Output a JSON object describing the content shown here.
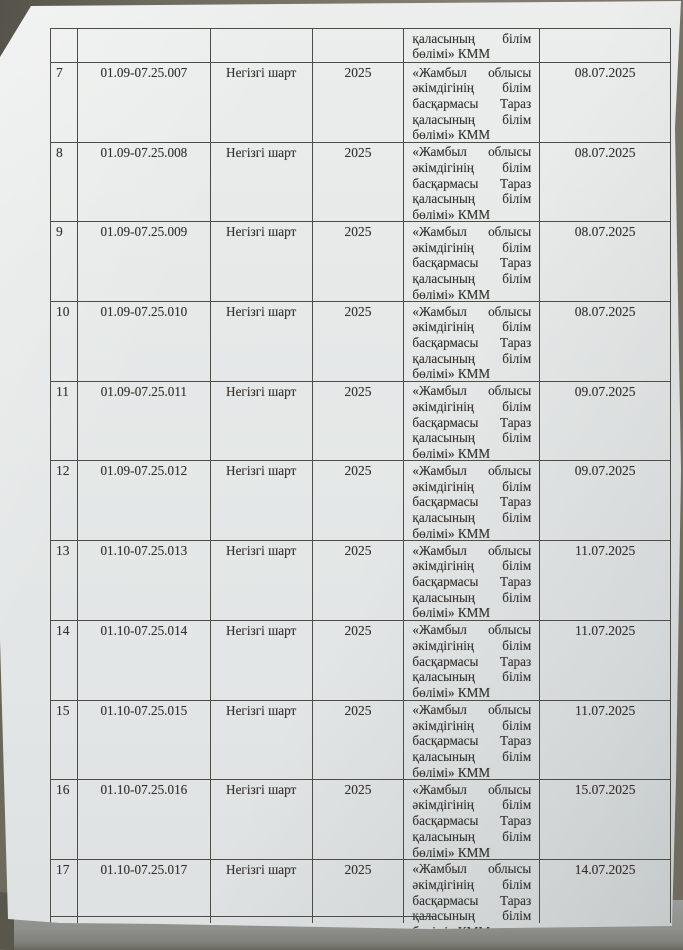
{
  "document": {
    "kind": "photographed paper page, continuation of a contracts register table",
    "language": "Kazakh"
  },
  "table": {
    "organization_full": "«Жамбыл облысы әкімдігінің білім басқармасы Тараз қаласының білім бөлімі» КММ",
    "organization_lines": [
      [
        "«Жамбыл",
        "облысы"
      ],
      [
        "әкімдігінің",
        "білім"
      ],
      [
        "басқармасы",
        "Тараз"
      ],
      [
        "қаласының",
        "білім"
      ],
      [
        "бөлімі» КММ"
      ]
    ],
    "top_partial_row": {
      "organization_lines": [
        [
          "қаласының",
          "білім"
        ],
        [
          "бөлімі» КММ"
        ]
      ]
    },
    "rows": [
      {
        "no": "7",
        "contract": "01.09-07.25.007",
        "type": "Негізгі шарт",
        "year": "2025",
        "date": "08.07.2025"
      },
      {
        "no": "8",
        "contract": "01.09-07.25.008",
        "type": "Негізгі шарт",
        "year": "2025",
        "date": "08.07.2025"
      },
      {
        "no": "9",
        "contract": "01.09-07.25.009",
        "type": "Негізгі шарт",
        "year": "2025",
        "date": "08.07.2025"
      },
      {
        "no": "10",
        "contract": "01.09-07.25.010",
        "type": "Негізгі шарт",
        "year": "2025",
        "date": "08.07.2025"
      },
      {
        "no": "11",
        "contract": "01.09-07.25.011",
        "type": "Негізгі шарт",
        "year": "2025",
        "date": "09.07.2025"
      },
      {
        "no": "12",
        "contract": "01.09-07.25.012",
        "type": "Негізгі шарт",
        "year": "2025",
        "date": "09.07.2025"
      },
      {
        "no": "13",
        "contract": "01.10-07.25.013",
        "type": "Негізгі шарт",
        "year": "2025",
        "date": "11.07.2025"
      },
      {
        "no": "14",
        "contract": "01.10-07.25.014",
        "type": "Негізгі шарт",
        "year": "2025",
        "date": "11.07.2025"
      },
      {
        "no": "15",
        "contract": "01.10-07.25.015",
        "type": "Негізгі шарт",
        "year": "2025",
        "date": "11.07.2025"
      },
      {
        "no": "16",
        "contract": "01.10-07.25.016",
        "type": "Негізгі шарт",
        "year": "2025",
        "date": "15.07.2025"
      },
      {
        "no": "17",
        "contract": "01.10-07.25.017",
        "type": "Негізгі шарт",
        "year": "2025",
        "date": "14.07.2025",
        "clipped": true
      }
    ]
  },
  "colors": {
    "paper": "#e6e9e8",
    "ink": "#33322f",
    "table_border": "#4c4c48",
    "desk_brown": "#6e6a5c",
    "desk_grey": "#8e918c"
  }
}
